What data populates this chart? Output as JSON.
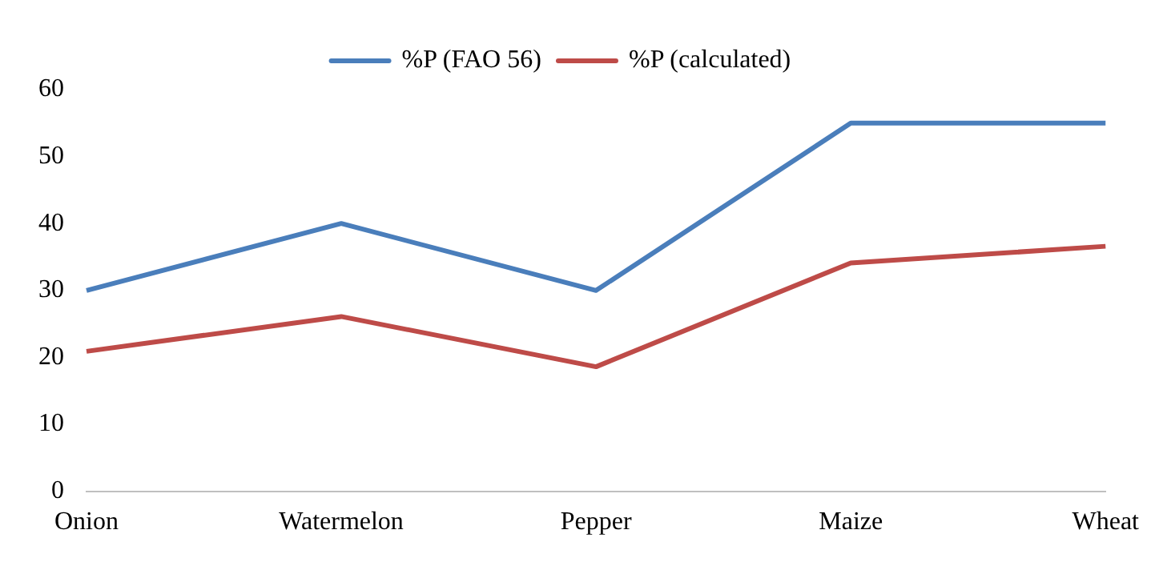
{
  "chart_data": {
    "type": "line",
    "categories": [
      "Onion",
      "Watermelon",
      "Pepper",
      "Maize",
      "Wheat"
    ],
    "series": [
      {
        "name": "%P (FAO 56)",
        "color": "#4a7ebb",
        "values": [
          30,
          40,
          30,
          55,
          55
        ]
      },
      {
        "name": "%P (calculated)",
        "color": "#be4b48",
        "values": [
          20.9,
          26.1,
          18.6,
          34.1,
          36.6
        ]
      }
    ],
    "ylim": [
      0,
      60
    ],
    "yticks": [
      0,
      10,
      20,
      30,
      40,
      50,
      60
    ],
    "grid": false,
    "legend": "top",
    "marker": "none"
  }
}
